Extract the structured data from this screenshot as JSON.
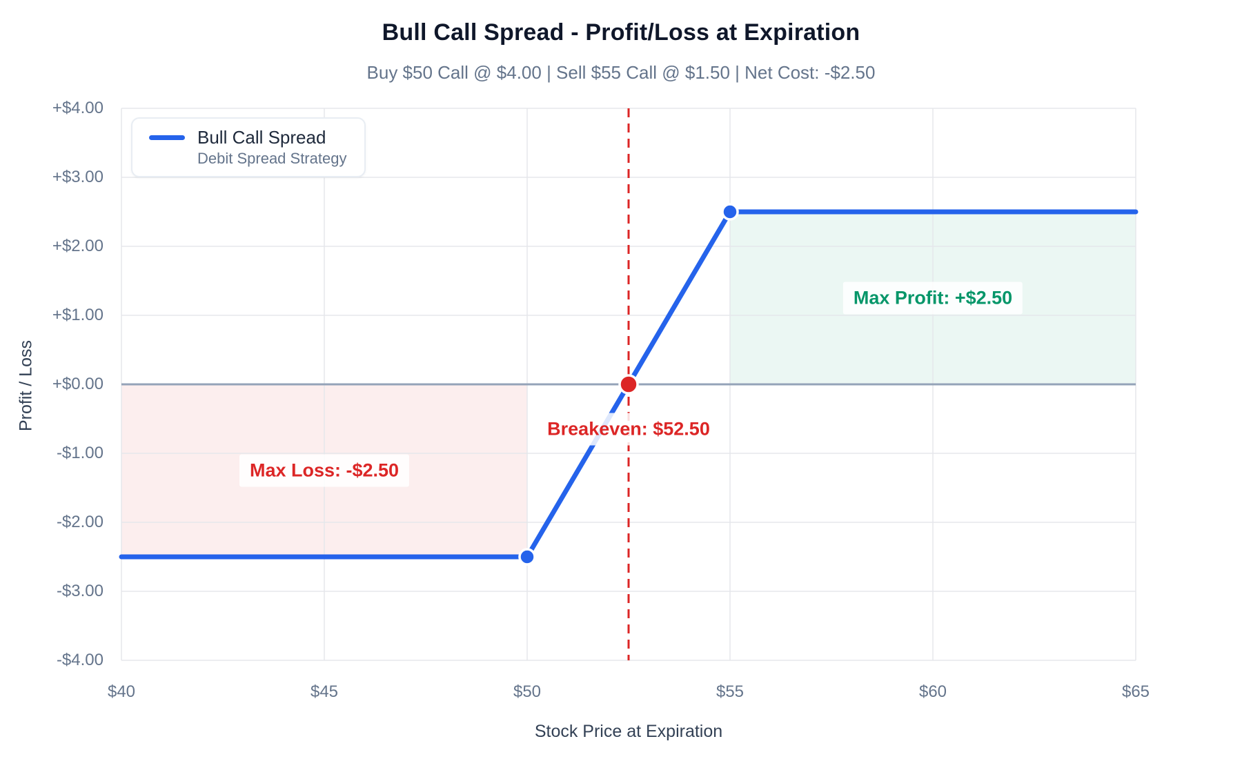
{
  "header": {
    "title": "Bull Call Spread - Profit/Loss at Expiration",
    "subtitle": "Buy $50 Call @ $4.00  |  Sell $55 Call @ $1.50  |  Net Cost: -$2.50"
  },
  "legend": {
    "series": "Bull Call Spread",
    "description": "Debit Spread Strategy"
  },
  "colors": {
    "line": "#2563eb",
    "profit_green": "#059669",
    "loss_red": "#dc2626",
    "zero_line": "#94a3b8",
    "grid": "#e5e7eb",
    "loss_fill": "rgba(220,38,38,0.08)",
    "profit_fill": "rgba(5,150,105,0.08)"
  },
  "chart_data": {
    "type": "line",
    "title": "Bull Call Spread - Profit/Loss at Expiration",
    "subtitle": "Buy $50 Call @ $4.00  |  Sell $55 Call @ $1.50  |  Net Cost: -$2.50",
    "xlabel": "Stock Price at Expiration",
    "ylabel": "Profit / Loss",
    "xlim": [
      40,
      65
    ],
    "ylim": [
      -4,
      4
    ],
    "grid": true,
    "legend_position": "top-left",
    "x_ticks": [
      40,
      45,
      50,
      55,
      60,
      65
    ],
    "x_tick_labels": [
      "$40",
      "$45",
      "$50",
      "$55",
      "$60",
      "$65"
    ],
    "y_ticks": [
      4,
      3,
      2,
      1,
      0,
      -1,
      -2,
      -3,
      -4
    ],
    "y_tick_labels": [
      "+$4.00",
      "+$3.00",
      "+$2.00",
      "+$1.00",
      "+$0.00",
      "-$1.00",
      "-$2.00",
      "-$3.00",
      "-$4.00"
    ],
    "series": [
      {
        "name": "Bull Call Spread",
        "description": "Debit Spread Strategy",
        "color": "#2563eb",
        "width": 7,
        "x": [
          40,
          50,
          55,
          65
        ],
        "y": [
          -2.5,
          -2.5,
          2.5,
          2.5
        ]
      }
    ],
    "key_points": [
      {
        "name": "max-loss-kink-point",
        "x": 50,
        "y": -2.5,
        "r": 11,
        "color": "#2563eb"
      },
      {
        "name": "max-profit-kink-point",
        "x": 55,
        "y": 2.5,
        "r": 11,
        "color": "#2563eb"
      },
      {
        "name": "breakeven-point",
        "x": 52.5,
        "y": 0,
        "r": 13,
        "color": "#dc2626"
      }
    ],
    "regions": [
      {
        "name": "max-loss-zone",
        "x0": 40,
        "x1": 50,
        "y0": -2.5,
        "y1": 0,
        "fill": "rgba(220,38,38,0.08)"
      },
      {
        "name": "max-profit-zone",
        "x0": 55,
        "x1": 65,
        "y0": 0,
        "y1": 2.5,
        "fill": "rgba(5,150,105,0.08)"
      }
    ],
    "zero_line": {
      "y": 0,
      "color": "#94a3b8",
      "width": 3
    },
    "vline": {
      "x": 52.5,
      "style": "dashed",
      "color": "#dc2626",
      "width": 3
    },
    "annotations": [
      {
        "name": "max-profit-label",
        "text": "Max Profit: +$2.50",
        "x": 60,
        "y": 1.25,
        "color": "#059669"
      },
      {
        "name": "max-loss-label",
        "text": "Max Loss: -$2.50",
        "x": 45,
        "y": -1.25,
        "color": "#dc2626"
      },
      {
        "name": "breakeven-label",
        "text": "Breakeven: $52.50",
        "x": 52.5,
        "y": -0.65,
        "color": "#dc2626"
      }
    ]
  }
}
